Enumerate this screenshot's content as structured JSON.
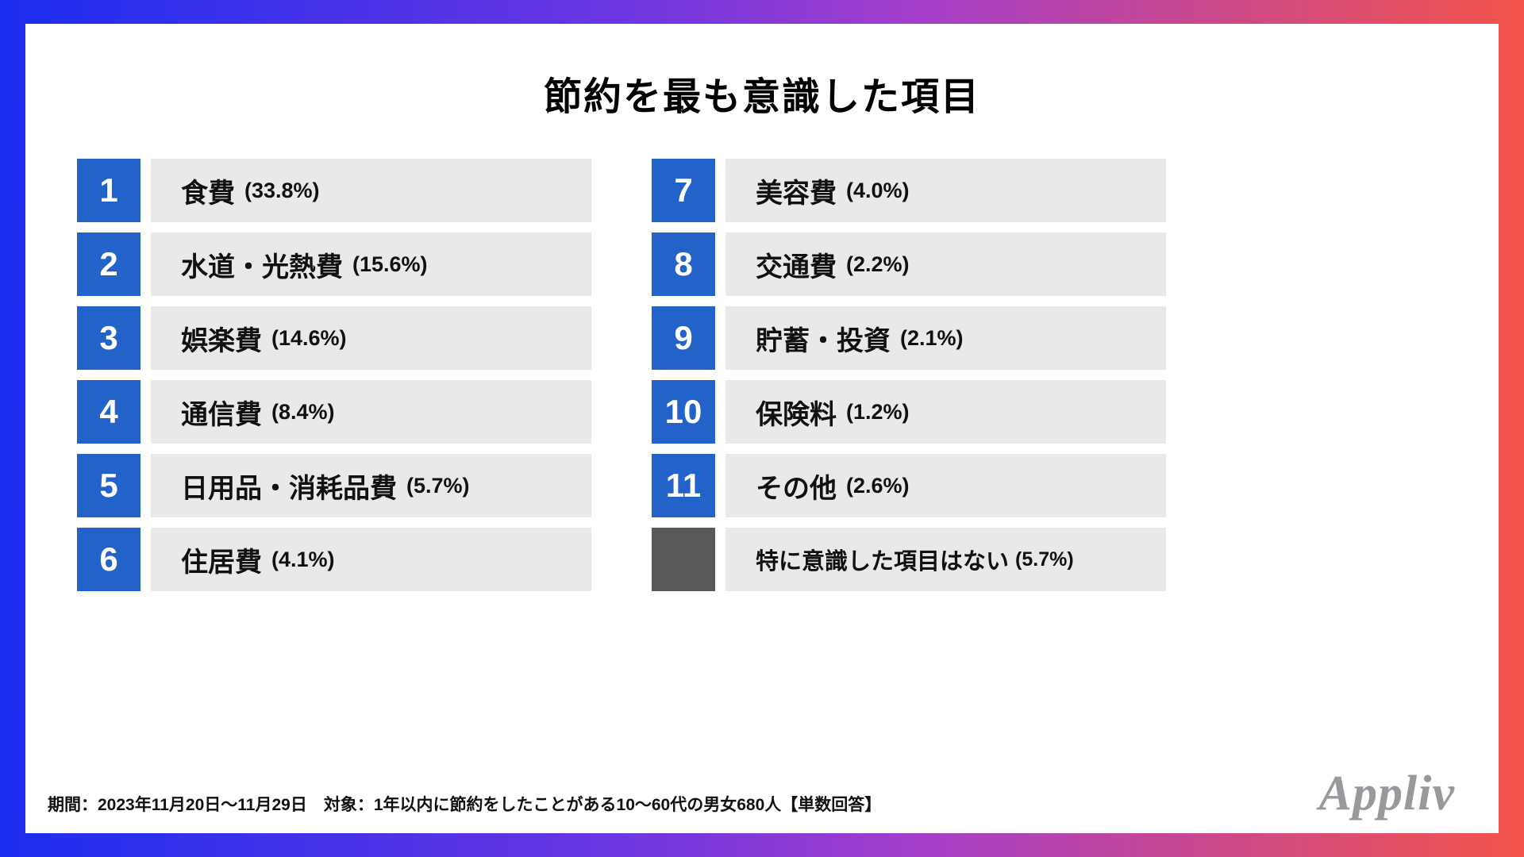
{
  "title": "節約を最も意識した項目",
  "colors": {
    "accent_blue": "#2262c9",
    "row_background": "#e9e9e9",
    "neutral_gray": "#595959",
    "border_gradient_start": "#1c2df0",
    "border_gradient_end": "#f3544a",
    "logo_gray": "#97999c"
  },
  "ranking": {
    "left": [
      {
        "rank": "1",
        "label": "食費",
        "pct": "(33.8%)"
      },
      {
        "rank": "2",
        "label": "水道・光熱費",
        "pct": "(15.6%)"
      },
      {
        "rank": "3",
        "label": "娯楽費",
        "pct": "(14.6%)"
      },
      {
        "rank": "4",
        "label": "通信費",
        "pct": "(8.4%)"
      },
      {
        "rank": "5",
        "label": "日用品・消耗品費",
        "pct": "(5.7%)"
      },
      {
        "rank": "6",
        "label": "住居費",
        "pct": "(4.1%)"
      }
    ],
    "right": [
      {
        "rank": "7",
        "label": "美容費",
        "pct": "(4.0%)"
      },
      {
        "rank": "8",
        "label": "交通費",
        "pct": "(2.2%)"
      },
      {
        "rank": "9",
        "label": "貯蓄・投資",
        "pct": "(2.1%)"
      },
      {
        "rank": "10",
        "label": "保険料",
        "pct": "(1.2%)"
      },
      {
        "rank": "11",
        "label": "その他",
        "pct": "(2.6%)"
      },
      {
        "rank": "",
        "label": "特に意識した項目はない",
        "pct": "(5.7%)"
      }
    ]
  },
  "footer": {
    "note": "期間：2023年11月20日〜11月29日　対象：1年以内に節約をしたことがある10〜60代の男女680人【単数回答】",
    "logo": "Appliv"
  },
  "chart_data": {
    "type": "table",
    "title": "節約を最も意識した項目",
    "categories": [
      "食費",
      "水道・光熱費",
      "娯楽費",
      "通信費",
      "日用品・消耗品費",
      "住居費",
      "美容費",
      "交通費",
      "貯蓄・投資",
      "保険料",
      "その他",
      "特に意識した項目はない"
    ],
    "values": [
      33.8,
      15.6,
      14.6,
      8.4,
      5.7,
      4.1,
      4.0,
      2.2,
      2.1,
      1.2,
      2.6,
      5.7
    ],
    "ranks": [
      1,
      2,
      3,
      4,
      5,
      6,
      7,
      8,
      9,
      10,
      11,
      null
    ],
    "unit": "%",
    "legend_position": "none",
    "note": "期間：2023年11月20日〜11月29日　対象：1年以内に節約をしたことがある10〜60代の男女680人【単数回答】"
  }
}
